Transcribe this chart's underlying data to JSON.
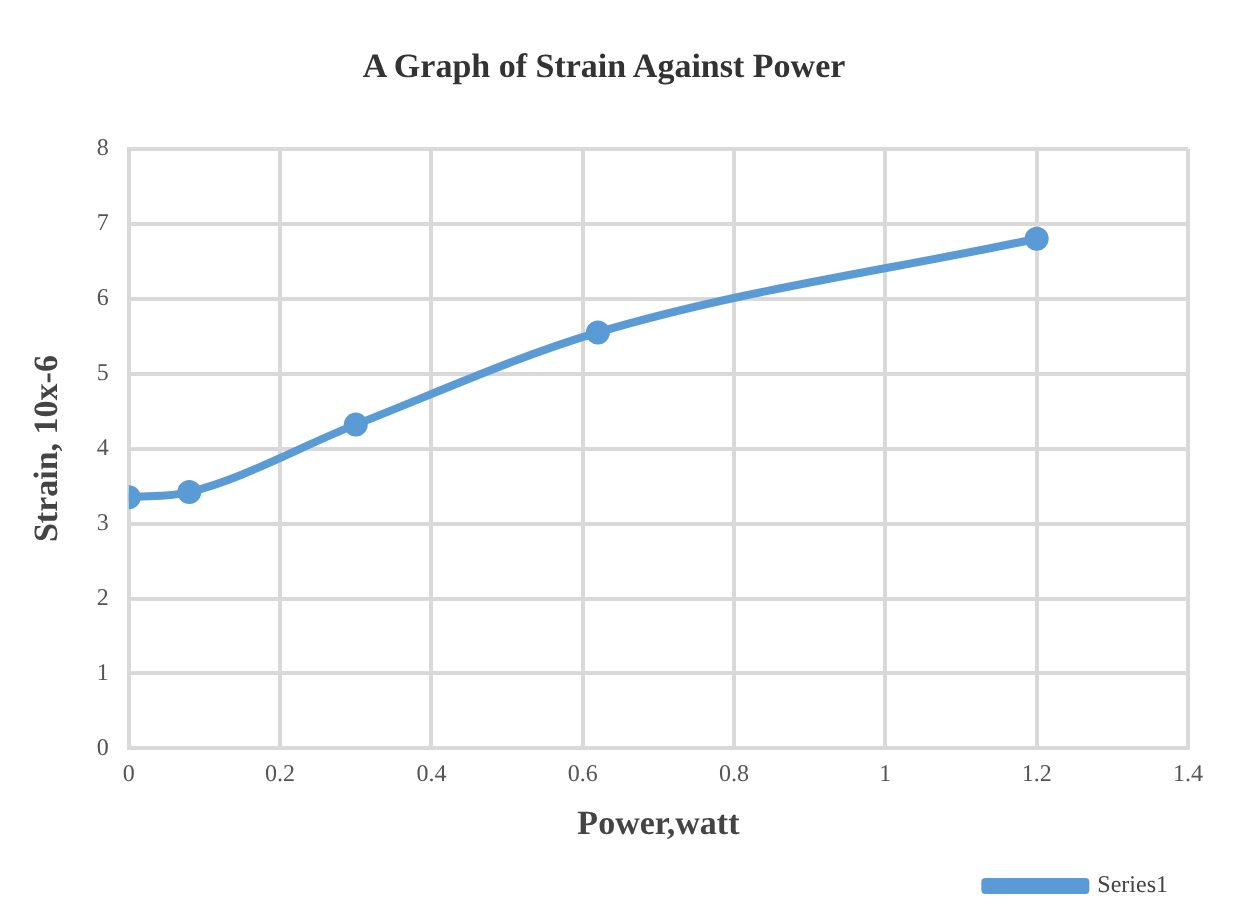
{
  "chart_data": {
    "type": "line",
    "title": "A Graph of Strain Against Power",
    "xlabel": "Power,watt",
    "ylabel": "Strain, 10x-6",
    "series": [
      {
        "name": "Series1",
        "color": "#5b9bd5",
        "x": [
          0,
          0.08,
          0.3,
          0.62,
          1.2
        ],
        "values": [
          3.35,
          3.42,
          4.32,
          5.55,
          6.8
        ]
      }
    ],
    "xlim": [
      0,
      1.4
    ],
    "xticks": [
      0,
      0.2,
      0.4,
      0.6,
      0.8,
      1,
      1.2,
      1.4
    ],
    "ylim": [
      0,
      8
    ],
    "yticks": [
      0,
      1,
      2,
      3,
      4,
      5,
      6,
      7,
      8
    ],
    "grid": true,
    "legend": "bottom right",
    "marker": "circle",
    "line_style": "solid"
  }
}
